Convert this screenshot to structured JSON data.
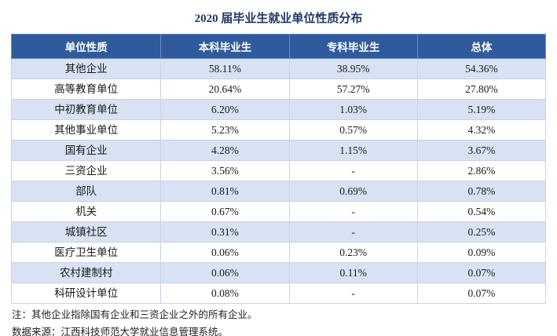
{
  "chart_data": {
    "type": "table",
    "title": "2020 届毕业生就业单位性质分布",
    "columns": [
      "单位性质",
      "本科毕业生",
      "专科毕业生",
      "总体"
    ],
    "rows": [
      [
        "其他企业",
        "58.11%",
        "38.95%",
        "54.36%"
      ],
      [
        "高等教育单位",
        "20.64%",
        "57.27%",
        "27.80%"
      ],
      [
        "中初教育单位",
        "6.20%",
        "1.03%",
        "5.19%"
      ],
      [
        "其他事业单位",
        "5.23%",
        "0.57%",
        "4.32%"
      ],
      [
        "国有企业",
        "4.28%",
        "1.15%",
        "3.67%"
      ],
      [
        "三资企业",
        "3.56%",
        "-",
        "2.86%"
      ],
      [
        "部队",
        "0.81%",
        "0.69%",
        "0.78%"
      ],
      [
        "机关",
        "0.67%",
        "-",
        "0.54%"
      ],
      [
        "城镇社区",
        "0.31%",
        "-",
        "0.25%"
      ],
      [
        "医疗卫生单位",
        "0.06%",
        "0.23%",
        "0.09%"
      ],
      [
        "农村建制村",
        "0.06%",
        "0.11%",
        "0.07%"
      ],
      [
        "科研设计单位",
        "0.08%",
        "-",
        "0.07%"
      ]
    ],
    "layout": {
      "grid": true,
      "alternating_row_shading": true,
      "first_shaded_row_index": 0
    }
  },
  "notes": [
    "注：其他企业指除国有企业和三资企业之外的所有企业。",
    "数据来源：江西科技师范大学就业信息管理系统。"
  ],
  "colors": {
    "header_bg": "#2f5b9d",
    "header_text": "#ffffff",
    "row_shaded": "#d9e2f2",
    "row_plain": "#ffffff",
    "border": "#c7d3e8",
    "title": "#1f3864",
    "note": "#222222"
  }
}
